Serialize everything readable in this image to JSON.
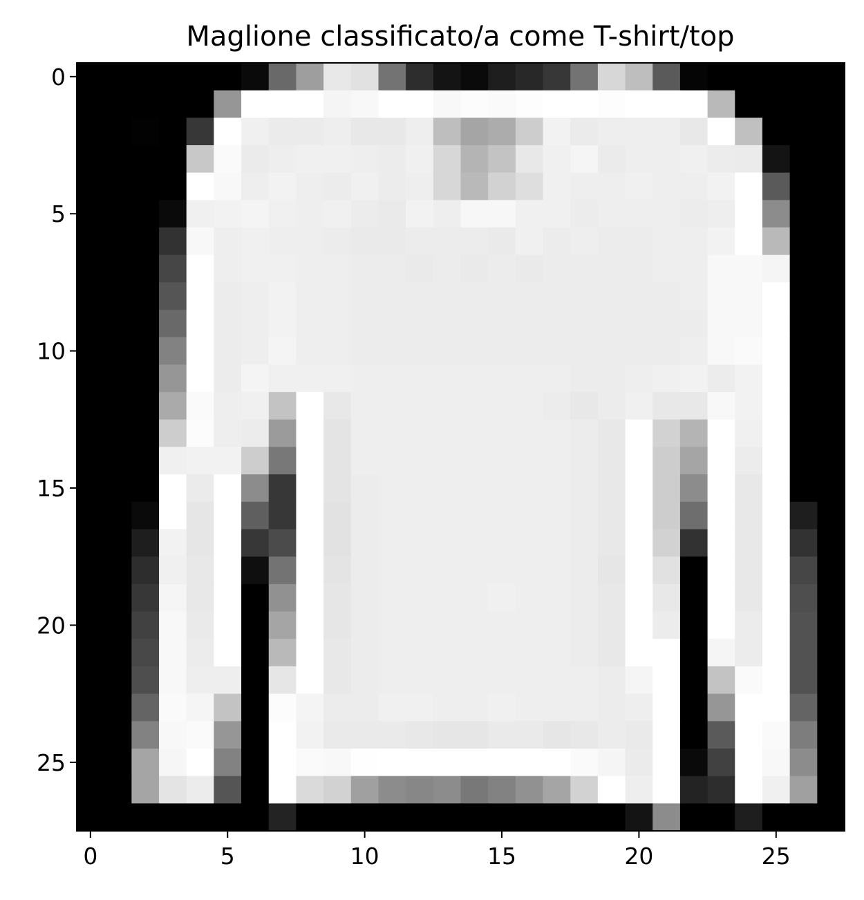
{
  "chart_data": {
    "type": "heatmap",
    "title": "Maglione classificato/a come T-shirt/top",
    "colormap": "gray",
    "value_range": [
      0,
      255
    ],
    "xlim": [
      -0.5,
      27.5
    ],
    "ylim": [
      27.5,
      -0.5
    ],
    "x_ticks": [
      0,
      5,
      10,
      15,
      20,
      25
    ],
    "y_ticks": [
      0,
      5,
      10,
      15,
      20,
      25
    ],
    "grid": false,
    "legend": "none",
    "rows": 28,
    "cols": 28,
    "pixels": [
      [
        0,
        0,
        0,
        0,
        0,
        0,
        10,
        105,
        158,
        232,
        225,
        115,
        45,
        20,
        10,
        30,
        40,
        55,
        115,
        215,
        190,
        90,
        5,
        0,
        0,
        0,
        0,
        0
      ],
      [
        0,
        0,
        0,
        0,
        0,
        150,
        255,
        255,
        255,
        245,
        248,
        255,
        255,
        248,
        252,
        250,
        253,
        255,
        255,
        253,
        255,
        255,
        255,
        185,
        0,
        0,
        0,
        0
      ],
      [
        0,
        0,
        2,
        0,
        55,
        255,
        240,
        235,
        235,
        238,
        232,
        232,
        238,
        190,
        165,
        172,
        205,
        242,
        235,
        238,
        238,
        238,
        232,
        255,
        192,
        0,
        0,
        0
      ],
      [
        0,
        0,
        0,
        0,
        200,
        250,
        235,
        238,
        240,
        240,
        238,
        236,
        240,
        215,
        180,
        195,
        232,
        240,
        245,
        235,
        238,
        238,
        240,
        236,
        235,
        20,
        0,
        0
      ],
      [
        0,
        0,
        0,
        0,
        255,
        248,
        238,
        242,
        238,
        236,
        240,
        236,
        238,
        215,
        185,
        210,
        222,
        240,
        238,
        238,
        240,
        238,
        238,
        242,
        255,
        90,
        0,
        0
      ],
      [
        0,
        0,
        0,
        10,
        240,
        242,
        244,
        240,
        238,
        240,
        236,
        234,
        242,
        238,
        247,
        247,
        240,
        240,
        236,
        238,
        238,
        238,
        236,
        238,
        255,
        140,
        0,
        0
      ],
      [
        0,
        0,
        0,
        50,
        248,
        238,
        240,
        238,
        238,
        236,
        234,
        234,
        236,
        236,
        236,
        234,
        240,
        236,
        238,
        236,
        236,
        238,
        238,
        242,
        255,
        185,
        0,
        0
      ],
      [
        0,
        0,
        0,
        70,
        255,
        238,
        240,
        240,
        238,
        238,
        236,
        236,
        234,
        236,
        234,
        236,
        234,
        236,
        236,
        236,
        236,
        238,
        238,
        248,
        248,
        245,
        0,
        0
      ],
      [
        0,
        0,
        0,
        85,
        255,
        236,
        238,
        242,
        238,
        238,
        236,
        236,
        236,
        236,
        236,
        236,
        236,
        236,
        236,
        236,
        236,
        236,
        238,
        248,
        248,
        255,
        0,
        0
      ],
      [
        0,
        0,
        0,
        105,
        255,
        236,
        238,
        242,
        238,
        238,
        236,
        236,
        236,
        236,
        236,
        236,
        236,
        236,
        236,
        236,
        236,
        236,
        236,
        248,
        248,
        255,
        0,
        0
      ],
      [
        0,
        0,
        0,
        130,
        255,
        236,
        238,
        244,
        238,
        238,
        236,
        236,
        236,
        236,
        236,
        236,
        236,
        236,
        236,
        236,
        236,
        236,
        238,
        248,
        250,
        255,
        0,
        0
      ],
      [
        0,
        0,
        0,
        150,
        255,
        236,
        244,
        240,
        240,
        240,
        238,
        238,
        238,
        238,
        238,
        238,
        238,
        238,
        236,
        236,
        238,
        240,
        242,
        236,
        242,
        255,
        0,
        0
      ],
      [
        0,
        0,
        0,
        170,
        250,
        238,
        240,
        195,
        255,
        232,
        238,
        238,
        238,
        238,
        238,
        238,
        238,
        236,
        232,
        236,
        240,
        232,
        232,
        248,
        242,
        255,
        0,
        0
      ],
      [
        0,
        0,
        0,
        205,
        252,
        238,
        236,
        155,
        255,
        228,
        238,
        238,
        238,
        238,
        238,
        238,
        238,
        238,
        236,
        232,
        255,
        210,
        180,
        255,
        240,
        255,
        0,
        0
      ],
      [
        0,
        0,
        0,
        240,
        242,
        242,
        205,
        120,
        255,
        228,
        238,
        238,
        238,
        238,
        238,
        238,
        238,
        238,
        236,
        232,
        255,
        205,
        165,
        255,
        236,
        255,
        0,
        0
      ],
      [
        0,
        0,
        0,
        255,
        235,
        255,
        140,
        55,
        255,
        228,
        236,
        238,
        238,
        238,
        238,
        238,
        238,
        238,
        236,
        232,
        255,
        205,
        140,
        255,
        232,
        255,
        0,
        0
      ],
      [
        0,
        0,
        10,
        255,
        230,
        255,
        95,
        55,
        255,
        226,
        236,
        238,
        238,
        238,
        238,
        238,
        238,
        238,
        236,
        232,
        255,
        205,
        110,
        255,
        232,
        255,
        30,
        0
      ],
      [
        0,
        0,
        30,
        242,
        230,
        255,
        55,
        75,
        255,
        226,
        236,
        238,
        238,
        238,
        238,
        238,
        238,
        238,
        236,
        232,
        255,
        210,
        50,
        255,
        232,
        255,
        50,
        0
      ],
      [
        0,
        0,
        45,
        240,
        232,
        255,
        15,
        115,
        255,
        228,
        236,
        238,
        238,
        238,
        238,
        238,
        238,
        238,
        236,
        230,
        255,
        225,
        0,
        255,
        232,
        255,
        70,
        0
      ],
      [
        0,
        0,
        55,
        245,
        232,
        255,
        0,
        145,
        255,
        230,
        236,
        238,
        238,
        238,
        238,
        240,
        238,
        238,
        236,
        232,
        255,
        232,
        0,
        255,
        232,
        255,
        78,
        0
      ],
      [
        0,
        0,
        65,
        248,
        234,
        255,
        0,
        165,
        255,
        230,
        236,
        238,
        238,
        238,
        238,
        238,
        238,
        238,
        236,
        232,
        255,
        236,
        0,
        255,
        236,
        255,
        82,
        0
      ],
      [
        0,
        0,
        72,
        248,
        236,
        255,
        0,
        185,
        255,
        232,
        236,
        238,
        238,
        238,
        238,
        238,
        238,
        238,
        236,
        232,
        255,
        255,
        0,
        245,
        236,
        255,
        82,
        0
      ],
      [
        0,
        0,
        78,
        248,
        238,
        238,
        0,
        230,
        255,
        232,
        236,
        238,
        238,
        238,
        238,
        238,
        238,
        238,
        238,
        236,
        245,
        255,
        0,
        195,
        250,
        255,
        82,
        0
      ],
      [
        0,
        0,
        100,
        250,
        245,
        195,
        0,
        252,
        244,
        236,
        236,
        240,
        240,
        238,
        238,
        240,
        238,
        238,
        238,
        236,
        238,
        255,
        0,
        150,
        255,
        255,
        100,
        0
      ],
      [
        0,
        0,
        130,
        248,
        250,
        150,
        0,
        255,
        242,
        234,
        234,
        234,
        232,
        230,
        230,
        234,
        234,
        230,
        232,
        236,
        234,
        255,
        0,
        90,
        255,
        250,
        125,
        0
      ],
      [
        0,
        0,
        165,
        246,
        255,
        130,
        0,
        255,
        250,
        248,
        254,
        255,
        255,
        255,
        255,
        255,
        255,
        255,
        250,
        245,
        235,
        255,
        10,
        65,
        255,
        248,
        140,
        0
      ],
      [
        0,
        0,
        165,
        228,
        236,
        85,
        0,
        255,
        218,
        210,
        160,
        140,
        135,
        140,
        120,
        130,
        145,
        165,
        210,
        255,
        238,
        255,
        35,
        45,
        255,
        240,
        160,
        0
      ],
      [
        0,
        0,
        0,
        0,
        0,
        0,
        0,
        35,
        0,
        0,
        0,
        0,
        0,
        0,
        0,
        0,
        0,
        0,
        0,
        0,
        20,
        140,
        0,
        0,
        30,
        0,
        0,
        0
      ]
    ]
  }
}
